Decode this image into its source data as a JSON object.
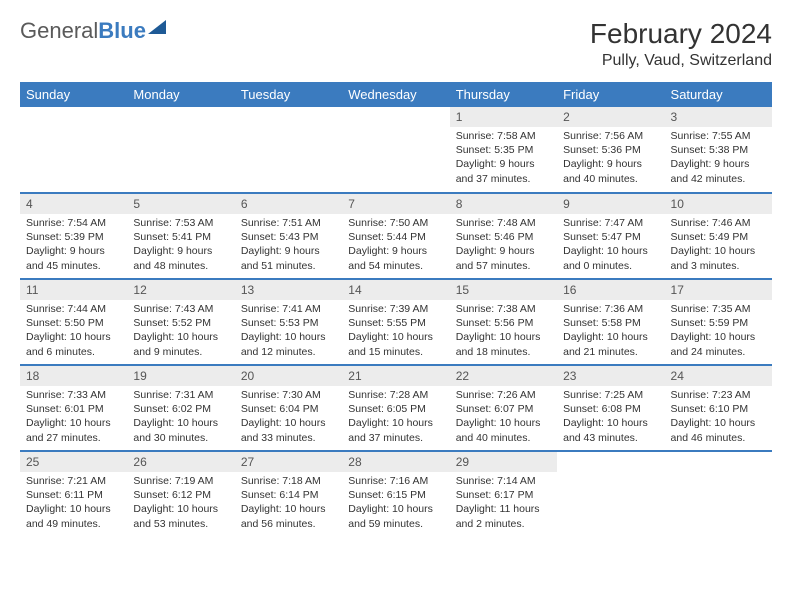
{
  "logo": {
    "part1": "General",
    "part2": "Blue"
  },
  "title": "February 2024",
  "location": "Pully, Vaud, Switzerland",
  "colors": {
    "header_bg": "#3b7bbf",
    "header_text": "#ffffff",
    "daynum_bg": "#ececec",
    "row_border": "#3b7bbf"
  },
  "weekdays": [
    "Sunday",
    "Monday",
    "Tuesday",
    "Wednesday",
    "Thursday",
    "Friday",
    "Saturday"
  ],
  "weeks": [
    [
      null,
      null,
      null,
      null,
      {
        "n": "1",
        "sr": "7:58 AM",
        "ss": "5:35 PM",
        "dl": "9 hours and 37 minutes."
      },
      {
        "n": "2",
        "sr": "7:56 AM",
        "ss": "5:36 PM",
        "dl": "9 hours and 40 minutes."
      },
      {
        "n": "3",
        "sr": "7:55 AM",
        "ss": "5:38 PM",
        "dl": "9 hours and 42 minutes."
      }
    ],
    [
      {
        "n": "4",
        "sr": "7:54 AM",
        "ss": "5:39 PM",
        "dl": "9 hours and 45 minutes."
      },
      {
        "n": "5",
        "sr": "7:53 AM",
        "ss": "5:41 PM",
        "dl": "9 hours and 48 minutes."
      },
      {
        "n": "6",
        "sr": "7:51 AM",
        "ss": "5:43 PM",
        "dl": "9 hours and 51 minutes."
      },
      {
        "n": "7",
        "sr": "7:50 AM",
        "ss": "5:44 PM",
        "dl": "9 hours and 54 minutes."
      },
      {
        "n": "8",
        "sr": "7:48 AM",
        "ss": "5:46 PM",
        "dl": "9 hours and 57 minutes."
      },
      {
        "n": "9",
        "sr": "7:47 AM",
        "ss": "5:47 PM",
        "dl": "10 hours and 0 minutes."
      },
      {
        "n": "10",
        "sr": "7:46 AM",
        "ss": "5:49 PM",
        "dl": "10 hours and 3 minutes."
      }
    ],
    [
      {
        "n": "11",
        "sr": "7:44 AM",
        "ss": "5:50 PM",
        "dl": "10 hours and 6 minutes."
      },
      {
        "n": "12",
        "sr": "7:43 AM",
        "ss": "5:52 PM",
        "dl": "10 hours and 9 minutes."
      },
      {
        "n": "13",
        "sr": "7:41 AM",
        "ss": "5:53 PM",
        "dl": "10 hours and 12 minutes."
      },
      {
        "n": "14",
        "sr": "7:39 AM",
        "ss": "5:55 PM",
        "dl": "10 hours and 15 minutes."
      },
      {
        "n": "15",
        "sr": "7:38 AM",
        "ss": "5:56 PM",
        "dl": "10 hours and 18 minutes."
      },
      {
        "n": "16",
        "sr": "7:36 AM",
        "ss": "5:58 PM",
        "dl": "10 hours and 21 minutes."
      },
      {
        "n": "17",
        "sr": "7:35 AM",
        "ss": "5:59 PM",
        "dl": "10 hours and 24 minutes."
      }
    ],
    [
      {
        "n": "18",
        "sr": "7:33 AM",
        "ss": "6:01 PM",
        "dl": "10 hours and 27 minutes."
      },
      {
        "n": "19",
        "sr": "7:31 AM",
        "ss": "6:02 PM",
        "dl": "10 hours and 30 minutes."
      },
      {
        "n": "20",
        "sr": "7:30 AM",
        "ss": "6:04 PM",
        "dl": "10 hours and 33 minutes."
      },
      {
        "n": "21",
        "sr": "7:28 AM",
        "ss": "6:05 PM",
        "dl": "10 hours and 37 minutes."
      },
      {
        "n": "22",
        "sr": "7:26 AM",
        "ss": "6:07 PM",
        "dl": "10 hours and 40 minutes."
      },
      {
        "n": "23",
        "sr": "7:25 AM",
        "ss": "6:08 PM",
        "dl": "10 hours and 43 minutes."
      },
      {
        "n": "24",
        "sr": "7:23 AM",
        "ss": "6:10 PM",
        "dl": "10 hours and 46 minutes."
      }
    ],
    [
      {
        "n": "25",
        "sr": "7:21 AM",
        "ss": "6:11 PM",
        "dl": "10 hours and 49 minutes."
      },
      {
        "n": "26",
        "sr": "7:19 AM",
        "ss": "6:12 PM",
        "dl": "10 hours and 53 minutes."
      },
      {
        "n": "27",
        "sr": "7:18 AM",
        "ss": "6:14 PM",
        "dl": "10 hours and 56 minutes."
      },
      {
        "n": "28",
        "sr": "7:16 AM",
        "ss": "6:15 PM",
        "dl": "10 hours and 59 minutes."
      },
      {
        "n": "29",
        "sr": "7:14 AM",
        "ss": "6:17 PM",
        "dl": "11 hours and 2 minutes."
      },
      null,
      null
    ]
  ],
  "labels": {
    "sunrise": "Sunrise:",
    "sunset": "Sunset:",
    "daylight": "Daylight:"
  }
}
